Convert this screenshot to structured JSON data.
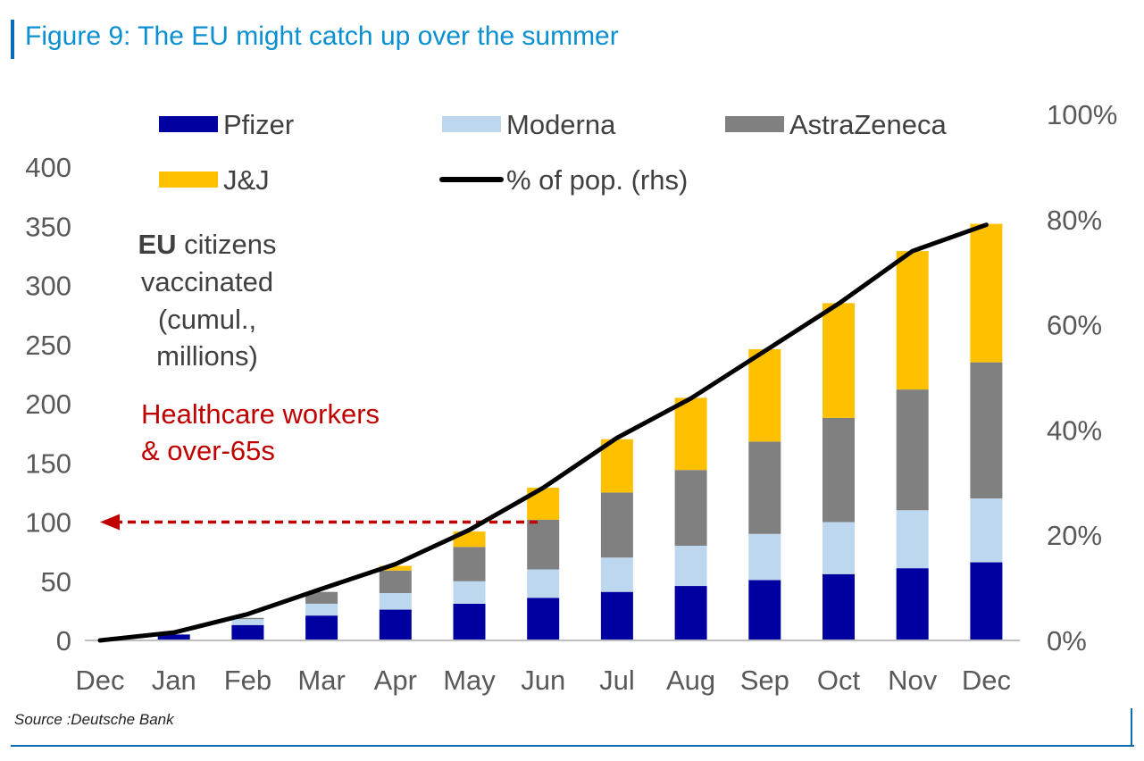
{
  "title": "Figure 9: The EU might catch up over the summer",
  "source": "Source :Deutsche Bank",
  "annotation": {
    "bold": "EU",
    "line1_rest": " citizens",
    "line2": "vaccinated",
    "line3": "(cumul.,",
    "line4": "millions)",
    "target_line1": "Healthcare workers",
    "target_line2": "& over-65s"
  },
  "colors": {
    "Pfizer": "#0000a0",
    "Moderna": "#bdd7ee",
    "AstraZeneca": "#808080",
    "J&J": "#ffc000",
    "line": "#000000",
    "target": "#c00000",
    "brand": "#0a8fd1"
  },
  "chart_data": {
    "type": "bar",
    "stacked": true,
    "categories": [
      "Dec",
      "Jan",
      "Feb",
      "Mar",
      "Apr",
      "May",
      "Jun",
      "Jul",
      "Aug",
      "Sep",
      "Oct",
      "Nov",
      "Dec"
    ],
    "series": [
      {
        "name": "Pfizer",
        "values": [
          0,
          5,
          13,
          21,
          26,
          31,
          36,
          41,
          46,
          51,
          56,
          61,
          66
        ]
      },
      {
        "name": "Moderna",
        "values": [
          0,
          0,
          5,
          10,
          14,
          19,
          24,
          29,
          34,
          39,
          44,
          49,
          54
        ]
      },
      {
        "name": "AstraZeneca",
        "values": [
          0,
          0,
          1,
          10,
          19,
          29,
          42,
          55,
          64,
          78,
          88,
          102,
          115
        ]
      },
      {
        "name": "J&J",
        "values": [
          0,
          0,
          0,
          0,
          4,
          13,
          27,
          45,
          61,
          78,
          97,
          117,
          117
        ]
      }
    ],
    "line_series": {
      "name": "% of pop. (rhs)",
      "values": [
        0,
        1.5,
        5,
        9.8,
        14.5,
        21,
        29,
        38.5,
        46,
        55,
        64,
        74,
        79
      ]
    },
    "y_ticks": [
      "0",
      "50",
      "100",
      "150",
      "200",
      "250",
      "300",
      "350",
      "400"
    ],
    "y2_ticks": [
      "0%",
      "20%",
      "40%",
      "60%",
      "80%",
      "100%"
    ],
    "ylim": [
      0,
      400
    ],
    "y2lim": [
      0,
      100
    ],
    "target_value": 100,
    "legend": [
      "Pfizer",
      "Moderna",
      "AstraZeneca",
      "J&J",
      "% of pop. (rhs)"
    ],
    "legend_position": "top",
    "grid": false
  }
}
